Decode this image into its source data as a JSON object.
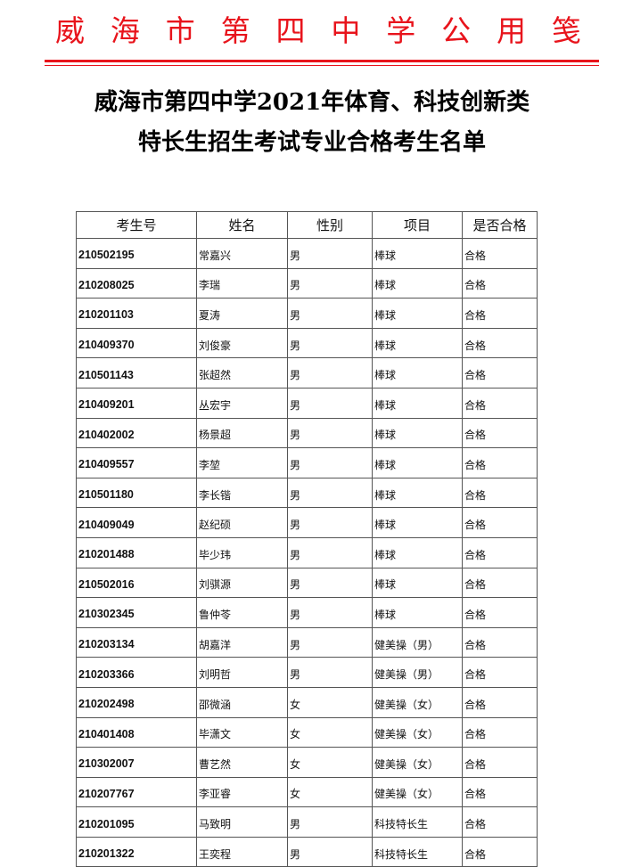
{
  "letterhead": {
    "chars": [
      "威",
      "海",
      "市",
      "第",
      "四",
      "中",
      "学",
      "公",
      "用",
      "笺"
    ],
    "color": "#e8141c"
  },
  "title": {
    "line1": "威海市第四中学2021年体育、科技创新类",
    "line2": "特长生招生考试专业合格考生名单"
  },
  "table": {
    "headers": [
      "考生号",
      "姓名",
      "性别",
      "项目",
      "是否合格"
    ],
    "rows": [
      [
        "210502195",
        "常嘉兴",
        "男",
        "棒球",
        "合格"
      ],
      [
        "210208025",
        "李瑞",
        "男",
        "棒球",
        "合格"
      ],
      [
        "210201103",
        "夏涛",
        "男",
        "棒球",
        "合格"
      ],
      [
        "210409370",
        "刘俊豪",
        "男",
        "棒球",
        "合格"
      ],
      [
        "210501143",
        "张超然",
        "男",
        "棒球",
        "合格"
      ],
      [
        "210409201",
        "丛宏宇",
        "男",
        "棒球",
        "合格"
      ],
      [
        "210402002",
        "杨景超",
        "男",
        "棒球",
        "合格"
      ],
      [
        "210409557",
        "李堃",
        "男",
        "棒球",
        "合格"
      ],
      [
        "210501180",
        "李长锴",
        "男",
        "棒球",
        "合格"
      ],
      [
        "210409049",
        "赵纪硕",
        "男",
        "棒球",
        "合格"
      ],
      [
        "210201488",
        "毕少玮",
        "男",
        "棒球",
        "合格"
      ],
      [
        "210502016",
        "刘骐源",
        "男",
        "棒球",
        "合格"
      ],
      [
        "210302345",
        "鲁仲苓",
        "男",
        "棒球",
        "合格"
      ],
      [
        "210203134",
        "胡嘉洋",
        "男",
        "健美操（男）",
        "合格"
      ],
      [
        "210203366",
        "刘明哲",
        "男",
        "健美操（男）",
        "合格"
      ],
      [
        "210202498",
        "邵微涵",
        "女",
        "健美操（女）",
        "合格"
      ],
      [
        "210401408",
        "毕潇文",
        "女",
        "健美操（女）",
        "合格"
      ],
      [
        "210302007",
        "曹艺然",
        "女",
        "健美操（女）",
        "合格"
      ],
      [
        "210207767",
        "李亚睿",
        "女",
        "健美操（女）",
        "合格"
      ],
      [
        "210201095",
        "马致明",
        "男",
        "科技特长生",
        "合格"
      ],
      [
        "210201322",
        "王奕程",
        "男",
        "科技特长生",
        "合格"
      ]
    ]
  }
}
